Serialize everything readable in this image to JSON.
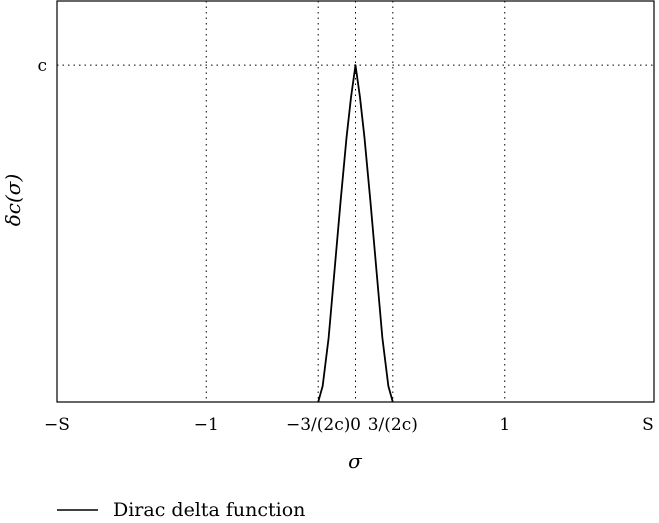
{
  "chart_data": {
    "type": "line",
    "title": "",
    "xlabel": "σ",
    "ylabel": "δc(σ)",
    "xlim": [
      -1,
      1
    ],
    "ylim": [
      0,
      1
    ],
    "grid": "dotted reference lines at labeled ticks",
    "legend_position": "bottom-left",
    "x_ticks": [
      {
        "value": -1.0,
        "label": "−S"
      },
      {
        "value": -0.5,
        "label": "−1"
      },
      {
        "value": -0.125,
        "label": "−3/(2c)"
      },
      {
        "value": 0.0,
        "label": "0"
      },
      {
        "value": 0.125,
        "label": "3/(2c)"
      },
      {
        "value": 0.5,
        "label": "1"
      },
      {
        "value": 1.0,
        "label": "S"
      }
    ],
    "x_gridlines": [
      -0.5,
      -0.125,
      0.0,
      0.125,
      0.5
    ],
    "y_ticks": [
      {
        "value": 0.84,
        "label": "c"
      }
    ],
    "y_gridlines": [
      0.84
    ],
    "series": [
      {
        "name": "Dirac delta function",
        "color": "#000000",
        "x": [
          -0.125,
          -0.11,
          -0.09,
          -0.07,
          -0.05,
          -0.03,
          -0.015,
          0.0,
          0.015,
          0.03,
          0.05,
          0.07,
          0.09,
          0.11,
          0.125
        ],
        "y": [
          0.0,
          0.04,
          0.16,
          0.33,
          0.5,
          0.66,
          0.76,
          0.84,
          0.76,
          0.66,
          0.5,
          0.33,
          0.16,
          0.04,
          0.0
        ]
      }
    ]
  }
}
